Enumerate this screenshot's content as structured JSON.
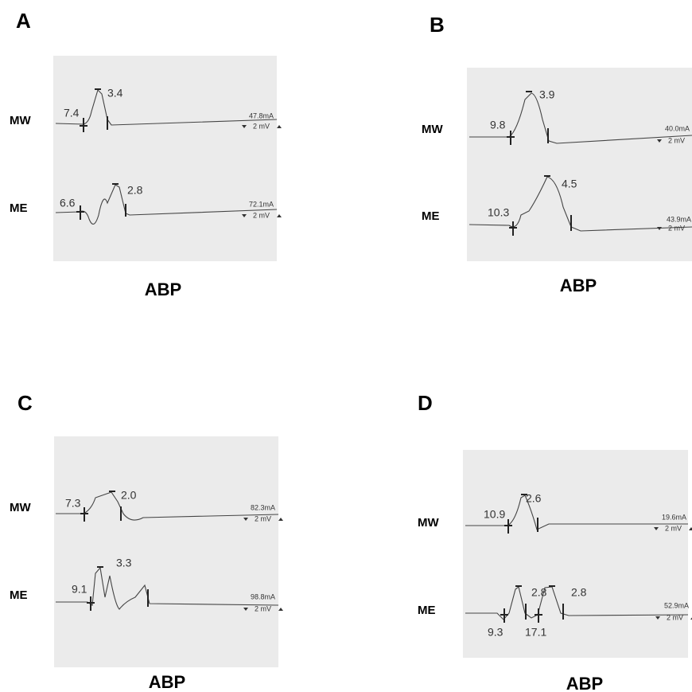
{
  "panels": [
    {
      "label": "A",
      "caption": "ABP",
      "traces": [
        {
          "name": "MW",
          "annotations": [
            "7.4",
            "3.4"
          ],
          "current": "47.8mA",
          "scale": "2 mV"
        },
        {
          "name": "ME",
          "annotations": [
            "6.6",
            "2.8"
          ],
          "current": "72.1mA",
          "scale": "2 mV"
        }
      ]
    },
    {
      "label": "B",
      "caption": "ABP",
      "traces": [
        {
          "name": "MW",
          "annotations": [
            "9.8",
            "3.9"
          ],
          "current": "40.0mA",
          "scale": "2 mV"
        },
        {
          "name": "ME",
          "annotations": [
            "10.3",
            "4.5"
          ],
          "current": "43.9mA",
          "scale": "2 mV"
        }
      ]
    },
    {
      "label": "C",
      "caption": "ABP",
      "traces": [
        {
          "name": "MW",
          "annotations": [
            "7.3",
            "2.0"
          ],
          "current": "82.3mA",
          "scale": "2 mV"
        },
        {
          "name": "ME",
          "annotations": [
            "9.1",
            "3.3"
          ],
          "current": "98.8mA",
          "scale": "2 mV"
        }
      ]
    },
    {
      "label": "D",
      "caption": "ABP",
      "traces": [
        {
          "name": "MW",
          "annotations": [
            "10.9",
            "2.6"
          ],
          "current": "19.6mA",
          "scale": "2 mV"
        },
        {
          "name": "ME",
          "annotations": [
            "9.3",
            "2.8",
            "17.1",
            "2.8"
          ],
          "current": "52.9mA",
          "scale": "2 mV"
        }
      ]
    }
  ]
}
